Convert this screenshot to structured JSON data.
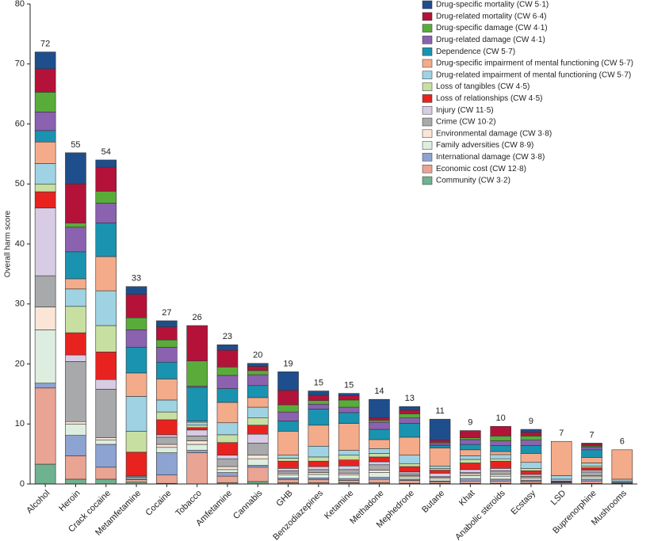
{
  "chart_data": {
    "type": "stacked_bar",
    "y_label": "Overall harm score",
    "categories": [
      "Alcohol",
      "Heroin",
      "Crack cocaine",
      "Metamfetamine",
      "Cocaine",
      "Tobacco",
      "Amfetamine",
      "Cannabis",
      "GHB",
      "Benzodiazepines",
      "Ketamine",
      "Methadone",
      "Mephedrone",
      "Butane",
      "Khat",
      "Anabolic steroids",
      "Ecstasy",
      "LSD",
      "Buprenorphine",
      "Mushrooms"
    ],
    "totals": [
      72,
      55,
      54,
      33,
      27,
      26,
      23,
      20,
      19,
      15,
      15,
      14,
      13,
      11,
      9,
      10,
      9,
      7,
      7,
      6
    ],
    "ylim": [
      0,
      80
    ],
    "yticks": [
      0,
      10,
      20,
      30,
      40,
      50,
      60,
      70,
      80
    ],
    "legend": "top-right",
    "series": [
      {
        "name": "Drug-specific mortality (CW 5·1)",
        "color": "#1f4e8c",
        "values": [
          2.8,
          5.2,
          1.2,
          1.3,
          1.0,
          0,
          0.9,
          0.5,
          3.1,
          0.7,
          0.4,
          3.1,
          0.6,
          3.5,
          0,
          0,
          0.5,
          0,
          0.1,
          0
        ]
      },
      {
        "name": "Drug-related mortality (CW 6·4)",
        "color": "#b5123a",
        "values": [
          3.9,
          6.5,
          4.0,
          3.9,
          2.2,
          5.9,
          2.8,
          0.7,
          2.4,
          0.9,
          0.7,
          0.4,
          0.6,
          0.4,
          1.2,
          1.6,
          0.6,
          0,
          0.4,
          0
        ]
      },
      {
        "name": "Drug-specific damage (CW 4·1)",
        "color": "#5aac3a",
        "values": [
          3.3,
          0.7,
          2.0,
          2.0,
          1.2,
          4.2,
          1.4,
          0.7,
          1.2,
          0.6,
          1.2,
          0.3,
          0.7,
          0.2,
          0.3,
          0.8,
          0.7,
          0,
          0.2,
          0
        ]
      },
      {
        "name": "Drug-related damage (CW 4·1)",
        "color": "#8a62b0",
        "values": [
          3.1,
          4.1,
          3.3,
          2.9,
          2.5,
          0.2,
          2.2,
          1.8,
          1.5,
          0.8,
          0.9,
          1.2,
          0.9,
          0.3,
          0.8,
          0.8,
          0.9,
          0,
          0.4,
          0
        ]
      },
      {
        "name": "Dependence (CW 5·7)",
        "color": "#1a93b0",
        "values": [
          1.9,
          4.5,
          5.6,
          4.3,
          2.8,
          5.6,
          2.3,
          2.0,
          1.7,
          2.7,
          1.8,
          1.7,
          2.3,
          0.4,
          0.9,
          1.0,
          1.3,
          0,
          1.3,
          0
        ]
      },
      {
        "name": "Drug-specific impairment of mental functioning (CW 5·7)",
        "color": "#f4ab8a",
        "values": [
          3.6,
          1.7,
          5.7,
          3.9,
          3.5,
          0.2,
          3.4,
          1.6,
          4.0,
          3.5,
          4.5,
          1.5,
          3.0,
          3.0,
          1.0,
          0.5,
          1.5,
          5.7,
          0.9,
          4.9
        ]
      },
      {
        "name": "Drug-related impairment of mental functioning (CW 5·7)",
        "color": "#9fd3e3",
        "values": [
          3.4,
          2.9,
          5.8,
          5.8,
          2.0,
          0.5,
          2.0,
          1.8,
          0.5,
          1.8,
          0.8,
          0.8,
          1.4,
          0.4,
          0.6,
          0.7,
          1.0,
          0.6,
          0.5,
          0.3
        ]
      },
      {
        "name": "Loss of tangibles (CW 4·5)",
        "color": "#c7e0a2",
        "values": [
          1.3,
          4.4,
          4.4,
          3.5,
          1.3,
          0.4,
          1.3,
          1.2,
          0.5,
          0.7,
          0.8,
          0.6,
          0.5,
          0.3,
          0.6,
          0.4,
          0.4,
          0,
          0.3,
          0
        ]
      },
      {
        "name": "Loss of relationships (CW 4·5)",
        "color": "#e8231f",
        "values": [
          2.7,
          3.7,
          4.6,
          3.9,
          2.5,
          0.4,
          2.1,
          1.5,
          1.2,
          0.9,
          1.0,
          0.8,
          0.9,
          0.5,
          1.1,
          1.2,
          0.6,
          0,
          0.4,
          0
        ]
      },
      {
        "name": "Injury (CW 11·5)",
        "color": "#d8cbe4",
        "values": [
          11.3,
          1.1,
          1.6,
          0,
          0.4,
          1.0,
          0.6,
          1.5,
          0.4,
          0.5,
          0.6,
          0.5,
          0.3,
          0.6,
          0.5,
          0.4,
          0.3,
          0.3,
          0.3,
          0.2
        ]
      },
      {
        "name": "Crime (CW 10·2)",
        "color": "#a8a9ab",
        "values": [
          5.2,
          10.0,
          8.1,
          0.2,
          1.2,
          0.8,
          1.3,
          2.0,
          0.4,
          0.5,
          0.6,
          0.9,
          0.3,
          0.1,
          0.2,
          0.6,
          0.2,
          0.1,
          0.6,
          0
        ]
      },
      {
        "name": "Environmental damage (CW 3·8)",
        "color": "#fbe5d6",
        "values": [
          3.8,
          0.4,
          0.4,
          0.1,
          0.5,
          0.6,
          0.5,
          0.6,
          0.3,
          0.3,
          0.3,
          0.4,
          0.2,
          0.2,
          0.3,
          0.3,
          0.2,
          0,
          0.2,
          0.1
        ]
      },
      {
        "name": "Family adversities (CW 8·9)",
        "color": "#ddeee0",
        "values": [
          8.9,
          1.9,
          0.7,
          0.2,
          0.9,
          1.0,
          0.5,
          1.1,
          0.5,
          0.6,
          0.6,
          0.8,
          0.4,
          0.4,
          0.5,
          0.5,
          0.3,
          0.1,
          0.4,
          0
        ]
      },
      {
        "name": "International damage (CW 3·8)",
        "color": "#8da3d2",
        "values": [
          0.8,
          3.4,
          3.8,
          0.2,
          3.7,
          0.4,
          0.6,
          0.3,
          0.3,
          0.3,
          0.3,
          0.3,
          0.2,
          0.1,
          0.4,
          0.3,
          0.2,
          0.1,
          0.3,
          0.1
        ]
      },
      {
        "name": "Economic cost (CW 12·8)",
        "color": "#e9a493",
        "values": [
          12.7,
          3.9,
          2.0,
          0.4,
          1.4,
          5.2,
          1.1,
          2.4,
          0.5,
          0.5,
          0.4,
          0.6,
          0.5,
          0.3,
          0.4,
          0.4,
          0.3,
          0.2,
          0.4,
          0.1
        ]
      },
      {
        "name": "Community (CW 3·2)",
        "color": "#6fb28f",
        "values": [
          3.3,
          0.8,
          0.8,
          0.3,
          0.1,
          0,
          0.2,
          0.4,
          0.2,
          0.2,
          0.2,
          0.2,
          0.1,
          0.1,
          0.1,
          0.1,
          0.1,
          0,
          0.1,
          0
        ]
      }
    ]
  }
}
